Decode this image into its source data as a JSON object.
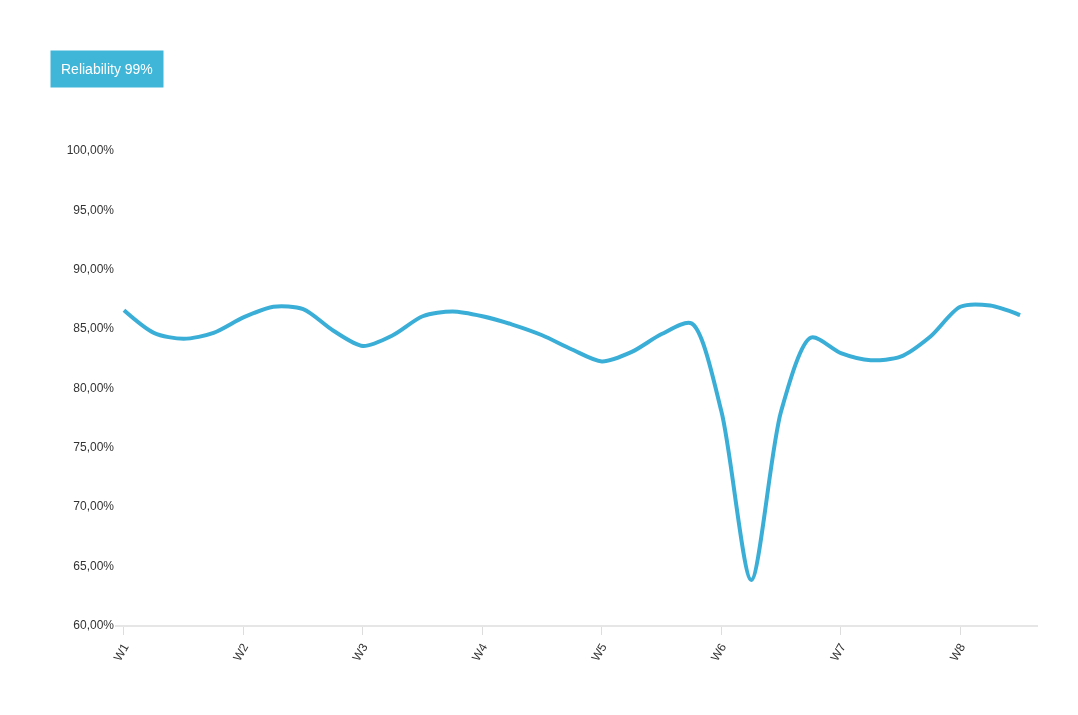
{
  "chart_data": {
    "type": "line",
    "title": "Reliability 99%",
    "categories": [
      "W1",
      null,
      null,
      null,
      "W2",
      null,
      null,
      null,
      "W3",
      null,
      null,
      null,
      "W4",
      null,
      null,
      null,
      "W5",
      null,
      null,
      null,
      "W6",
      null,
      null,
      null,
      "W7",
      null,
      null,
      null,
      "W8",
      null,
      null
    ],
    "series": [
      {
        "color": "#3aaed6",
        "values": [
          86.5,
          84.6,
          84.1,
          84.6,
          85.9,
          86.8,
          86.6,
          84.8,
          83.5,
          84.4,
          86.0,
          86.4,
          86.0,
          85.3,
          84.4,
          83.2,
          82.2,
          83.0,
          84.5,
          85.4,
          78.0,
          63.8,
          78.0,
          84.2,
          82.9,
          82.3,
          82.6,
          84.3,
          86.8,
          86.9,
          86.1
        ]
      }
    ],
    "ylim": [
      60,
      100
    ],
    "yticks": [
      {
        "value": 60,
        "label": "60,00%"
      },
      {
        "value": 65,
        "label": "65,00%"
      },
      {
        "value": 70,
        "label": "70,00%"
      },
      {
        "value": 75,
        "label": "75,00%"
      },
      {
        "value": 80,
        "label": "80,00%"
      },
      {
        "value": 85,
        "label": "85,00%"
      },
      {
        "value": 90,
        "label": "90,00%"
      },
      {
        "value": 95,
        "label": "95,00%"
      },
      {
        "value": 100,
        "label": "100,00%"
      }
    ],
    "legend": false,
    "marker": "none",
    "line_style": "solid"
  }
}
